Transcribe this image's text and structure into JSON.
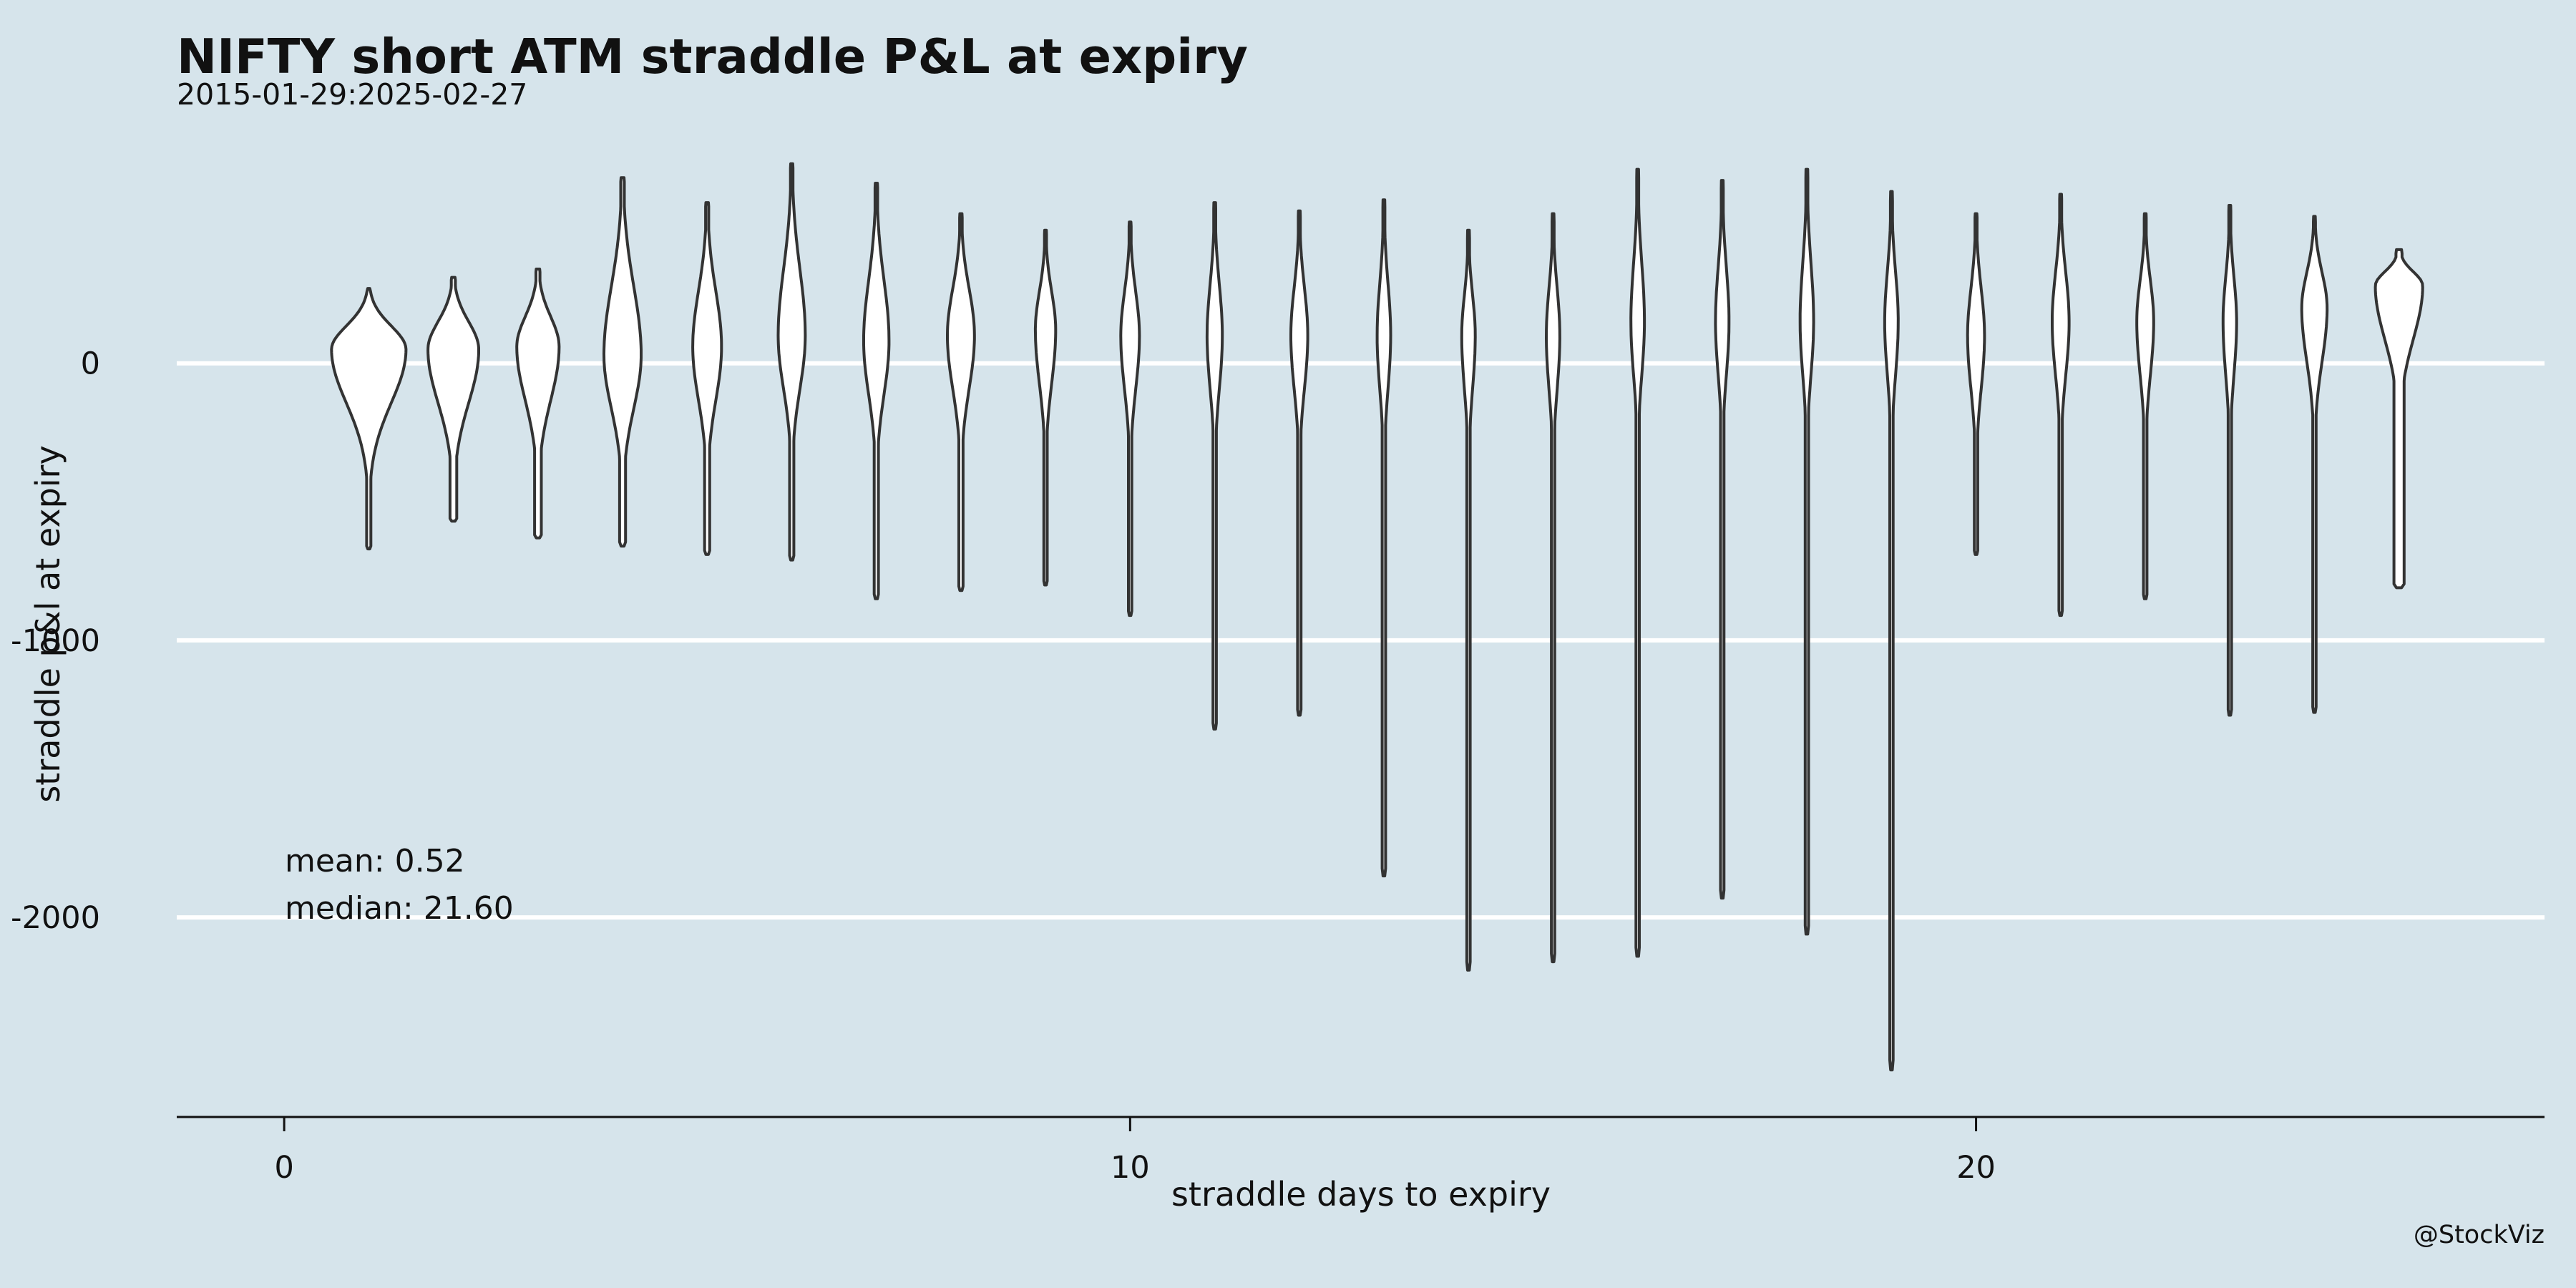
{
  "chart_data": {
    "type": "violin",
    "title": "NIFTY short ATM straddle P&L at expiry",
    "subtitle": "2015-01-29:2025-02-27",
    "xlabel": "straddle days to expiry",
    "ylabel": "straddle p&l at expiry",
    "caption": "@StockViz",
    "annotations": {
      "mean": "mean: 0.52",
      "median": "median: 21.60"
    },
    "xlim": [
      -1.27,
      26.72
    ],
    "ylim": [
      -2720,
      730
    ],
    "x_ticks": [
      0,
      10,
      20
    ],
    "x_tick_labels": [
      "0",
      "10",
      "20"
    ],
    "y_ticks": [
      0,
      -1000,
      -2000
    ],
    "y_tick_labels": [
      "0",
      "-1000",
      "-2000"
    ],
    "grid": true,
    "violins": [
      {
        "x": 1,
        "max": 270,
        "min": -670,
        "peak": 50,
        "peak_width": 0.44,
        "tail_width": 0.025
      },
      {
        "x": 2,
        "max": 310,
        "min": -570,
        "peak": 50,
        "peak_width": 0.3,
        "tail_width": 0.04
      },
      {
        "x": 3,
        "max": 340,
        "min": -630,
        "peak": 60,
        "peak_width": 0.25,
        "tail_width": 0.04
      },
      {
        "x": 4,
        "max": 670,
        "min": -660,
        "peak": 30,
        "peak_width": 0.22,
        "tail_width": 0.035
      },
      {
        "x": 5,
        "max": 580,
        "min": -690,
        "peak": 60,
        "peak_width": 0.17,
        "tail_width": 0.03
      },
      {
        "x": 6,
        "max": 720,
        "min": -710,
        "peak": 100,
        "peak_width": 0.16,
        "tail_width": 0.025
      },
      {
        "x": 7,
        "max": 650,
        "min": -850,
        "peak": 80,
        "peak_width": 0.15,
        "tail_width": 0.025
      },
      {
        "x": 8,
        "max": 540,
        "min": -820,
        "peak": 100,
        "peak_width": 0.16,
        "tail_width": 0.025
      },
      {
        "x": 9,
        "max": 480,
        "min": -800,
        "peak": 120,
        "peak_width": 0.12,
        "tail_width": 0.02
      },
      {
        "x": 10,
        "max": 510,
        "min": -910,
        "peak": 100,
        "peak_width": 0.11,
        "tail_width": 0.02
      },
      {
        "x": 11,
        "max": 580,
        "min": -1320,
        "peak": 100,
        "peak_width": 0.09,
        "tail_width": 0.02
      },
      {
        "x": 12,
        "max": 550,
        "min": -1270,
        "peak": 100,
        "peak_width": 0.1,
        "tail_width": 0.02
      },
      {
        "x": 13,
        "max": 590,
        "min": -1850,
        "peak": 100,
        "peak_width": 0.08,
        "tail_width": 0.02
      },
      {
        "x": 14,
        "max": 480,
        "min": -2190,
        "peak": 100,
        "peak_width": 0.08,
        "tail_width": 0.02
      },
      {
        "x": 15,
        "max": 540,
        "min": -2160,
        "peak": 100,
        "peak_width": 0.08,
        "tail_width": 0.02
      },
      {
        "x": 16,
        "max": 700,
        "min": -2140,
        "peak": 150,
        "peak_width": 0.08,
        "tail_width": 0.02
      },
      {
        "x": 17,
        "max": 660,
        "min": -1930,
        "peak": 150,
        "peak_width": 0.08,
        "tail_width": 0.02
      },
      {
        "x": 18,
        "max": 700,
        "min": -2060,
        "peak": 150,
        "peak_width": 0.08,
        "tail_width": 0.02
      },
      {
        "x": 19,
        "max": 620,
        "min": -2550,
        "peak": 150,
        "peak_width": 0.08,
        "tail_width": 0.02
      },
      {
        "x": 20,
        "max": 540,
        "min": -690,
        "peak": 100,
        "peak_width": 0.1,
        "tail_width": 0.02
      },
      {
        "x": 21,
        "max": 610,
        "min": -910,
        "peak": 150,
        "peak_width": 0.1,
        "tail_width": 0.02
      },
      {
        "x": 22,
        "max": 540,
        "min": -850,
        "peak": 150,
        "peak_width": 0.1,
        "tail_width": 0.02
      },
      {
        "x": 23,
        "max": 570,
        "min": -1270,
        "peak": 150,
        "peak_width": 0.08,
        "tail_width": 0.02
      },
      {
        "x": 24,
        "max": 530,
        "min": -1260,
        "peak": 200,
        "peak_width": 0.15,
        "tail_width": 0.02
      },
      {
        "x": 25,
        "max": 410,
        "min": -810,
        "peak": 280,
        "peak_width": 0.28,
        "tail_width": 0.06
      }
    ],
    "colors": {
      "background": "#d6e4eb",
      "grid": "#ffffff",
      "violin_fill": "#ffffff",
      "violin_stroke": "#333333"
    }
  }
}
